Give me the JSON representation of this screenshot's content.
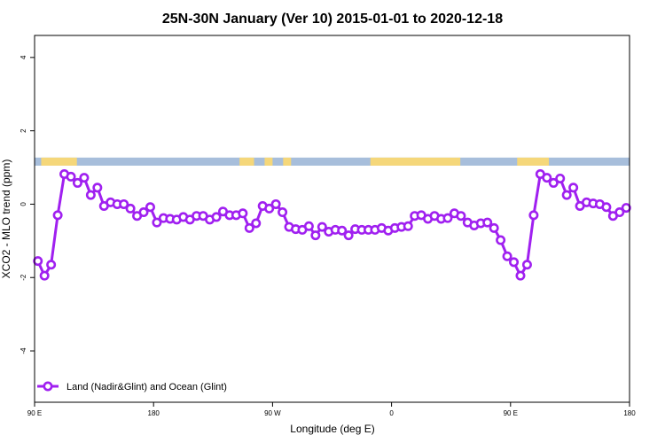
{
  "chart_data": {
    "type": "line",
    "title": "25N-30N January (Ver 10)   2015-01-01 to 2020-12-18",
    "xlabel": "Longitude (deg E)",
    "ylabel": "XCO2 - MLO trend (ppm)",
    "xlim": [
      90,
      540
    ],
    "ylim": [
      -5.4,
      4.6
    ],
    "x_ticks": [
      {
        "value": 90,
        "label": "90 E"
      },
      {
        "value": 180,
        "label": "180"
      },
      {
        "value": 270,
        "label": "90 W"
      },
      {
        "value": 360,
        "label": "0"
      },
      {
        "value": 450,
        "label": "90 E"
      },
      {
        "value": 540,
        "label": "180"
      }
    ],
    "y_ticks": [
      -4,
      -2,
      0,
      2,
      4
    ],
    "grid": false,
    "legend_position": "bottom-left",
    "land_ocean_strip": {
      "y_range": [
        1.05,
        1.27
      ],
      "ocean_color": "#A7BEDB",
      "land_color": "#F5D77A",
      "land_x_ranges": [
        [
          95,
          122
        ],
        [
          245,
          256
        ],
        [
          264,
          270
        ],
        [
          278,
          284
        ],
        [
          344,
          412
        ],
        [
          455,
          479
        ]
      ]
    },
    "series": [
      {
        "name": "Land (Nadir&Glint) and Ocean (Glint)",
        "color": "#A020F0",
        "x": [
          92.5,
          97.5,
          102.5,
          107.5,
          112.5,
          117.5,
          122.5,
          127.5,
          132.5,
          137.5,
          142.5,
          147.5,
          152.5,
          157.5,
          162.5,
          167.5,
          172.5,
          177.5,
          182.5,
          187.5,
          192.5,
          197.5,
          202.5,
          207.5,
          212.5,
          217.5,
          222.5,
          227.5,
          232.5,
          237.5,
          242.5,
          247.5,
          252.5,
          257.5,
          262.5,
          267.5,
          272.5,
          277.5,
          282.5,
          287.5,
          292.5,
          297.5,
          302.5,
          307.5,
          312.5,
          317.5,
          322.5,
          327.5,
          332.5,
          337.5,
          342.5,
          347.5,
          352.5,
          357.5,
          362.5,
          367.5,
          372.5,
          377.5,
          382.5,
          387.5,
          392.5,
          397.5,
          402.5,
          407.5,
          412.5,
          417.5,
          422.5,
          427.5,
          432.5,
          437.5,
          442.5,
          447.5,
          452.5,
          457.5,
          462.5,
          467.5,
          472.5,
          477.5,
          482.5,
          487.5,
          492.5,
          497.5,
          502.5,
          507.5,
          512.5,
          517.5,
          522.5,
          527.5,
          532.5,
          537.5
        ],
        "y": [
          -1.55,
          -1.95,
          -1.65,
          -0.3,
          0.82,
          0.75,
          0.58,
          0.72,
          0.25,
          0.45,
          -0.05,
          0.05,
          0.0,
          0.0,
          -0.12,
          -0.32,
          -0.22,
          -0.08,
          -0.5,
          -0.38,
          -0.4,
          -0.42,
          -0.35,
          -0.42,
          -0.32,
          -0.32,
          -0.42,
          -0.35,
          -0.2,
          -0.3,
          -0.3,
          -0.25,
          -0.65,
          -0.52,
          -0.05,
          -0.12,
          0.0,
          -0.22,
          -0.62,
          -0.68,
          -0.7,
          -0.6,
          -0.85,
          -0.62,
          -0.75,
          -0.7,
          -0.72,
          -0.85,
          -0.68,
          -0.7,
          -0.7,
          -0.7,
          -0.65,
          -0.72,
          -0.65,
          -0.62,
          -0.6,
          -0.32,
          -0.3,
          -0.4,
          -0.32,
          -0.4,
          -0.38,
          -0.25,
          -0.32,
          -0.5,
          -0.58,
          -0.52,
          -0.5,
          -0.65,
          -0.98,
          -1.42,
          -1.58,
          -1.95,
          -1.65,
          -0.3,
          0.82,
          0.72,
          0.58,
          0.7,
          0.25,
          0.45,
          -0.05,
          0.05,
          0.02,
          0.0,
          -0.08,
          -0.32,
          -0.22,
          -0.1
        ]
      }
    ]
  }
}
